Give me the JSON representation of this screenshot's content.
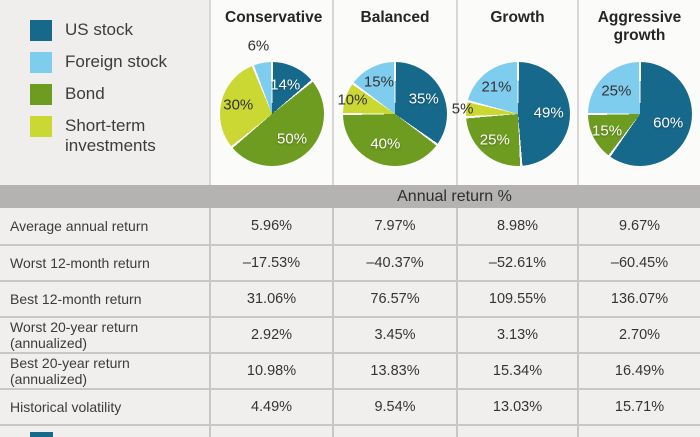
{
  "colors": {
    "us": "#17698c",
    "foreign": "#7fcdee",
    "bond": "#6e9c21",
    "short": "#cbd733"
  },
  "legend": {
    "items": [
      {
        "id": "us",
        "label": "US stock"
      },
      {
        "id": "foreign",
        "label": "Foreign stock"
      },
      {
        "id": "bond",
        "label": "Bond"
      },
      {
        "id": "short",
        "label": "Short-term investments"
      }
    ]
  },
  "chart_data": [
    {
      "type": "pie",
      "title": "Conservative",
      "slices": [
        {
          "label": "US stock",
          "color_id": "us",
          "value": 14
        },
        {
          "label": "Bond",
          "color_id": "bond",
          "value": 50
        },
        {
          "label": "Short-term investments",
          "color_id": "short",
          "value": 30
        },
        {
          "label": "Foreign stock",
          "color_id": "foreign",
          "value": 6
        }
      ]
    },
    {
      "type": "pie",
      "title": "Balanced",
      "slices": [
        {
          "label": "US stock",
          "color_id": "us",
          "value": 35
        },
        {
          "label": "Bond",
          "color_id": "bond",
          "value": 40
        },
        {
          "label": "Short-term investments",
          "color_id": "short",
          "value": 10
        },
        {
          "label": "Foreign stock",
          "color_id": "foreign",
          "value": 15
        }
      ]
    },
    {
      "type": "pie",
      "title": "Growth",
      "slices": [
        {
          "label": "US stock",
          "color_id": "us",
          "value": 49
        },
        {
          "label": "Bond",
          "color_id": "bond",
          "value": 25
        },
        {
          "label": "Short-term investments",
          "color_id": "short",
          "value": 5
        },
        {
          "label": "Foreign stock",
          "color_id": "foreign",
          "value": 21
        }
      ]
    },
    {
      "type": "pie",
      "title": "Aggressive growth",
      "slices": [
        {
          "label": "US stock",
          "color_id": "us",
          "value": 60
        },
        {
          "label": "Bond",
          "color_id": "bond",
          "value": 15
        },
        {
          "label": "Foreign stock",
          "color_id": "foreign",
          "value": 25
        }
      ]
    },
    {
      "type": "table",
      "title": "Annual return %",
      "columns": [
        "Conservative",
        "Balanced",
        "Growth",
        "Aggressive growth"
      ],
      "rows": [
        {
          "label": "Average annual return",
          "values": [
            "5.96%",
            "7.97%",
            "8.98%",
            "9.67%"
          ]
        },
        {
          "label": "Worst 12-month return",
          "values": [
            "–17.53%",
            "–40.37%",
            "–52.61%",
            "–60.45%"
          ]
        },
        {
          "label": "Best 12-month return",
          "values": [
            "31.06%",
            "76.57%",
            "109.55%",
            "136.07%"
          ]
        },
        {
          "label": "Worst 20-year return (annualized)",
          "values": [
            "2.92%",
            "3.45%",
            "3.13%",
            "2.70%"
          ]
        },
        {
          "label": "Best 20-year return (annualized)",
          "values": [
            "10.98%",
            "13.83%",
            "15.34%",
            "16.49%"
          ]
        },
        {
          "label": "Historical volatility",
          "values": [
            "4.49%",
            "9.54%",
            "13.03%",
            "15.71%"
          ]
        }
      ]
    }
  ]
}
